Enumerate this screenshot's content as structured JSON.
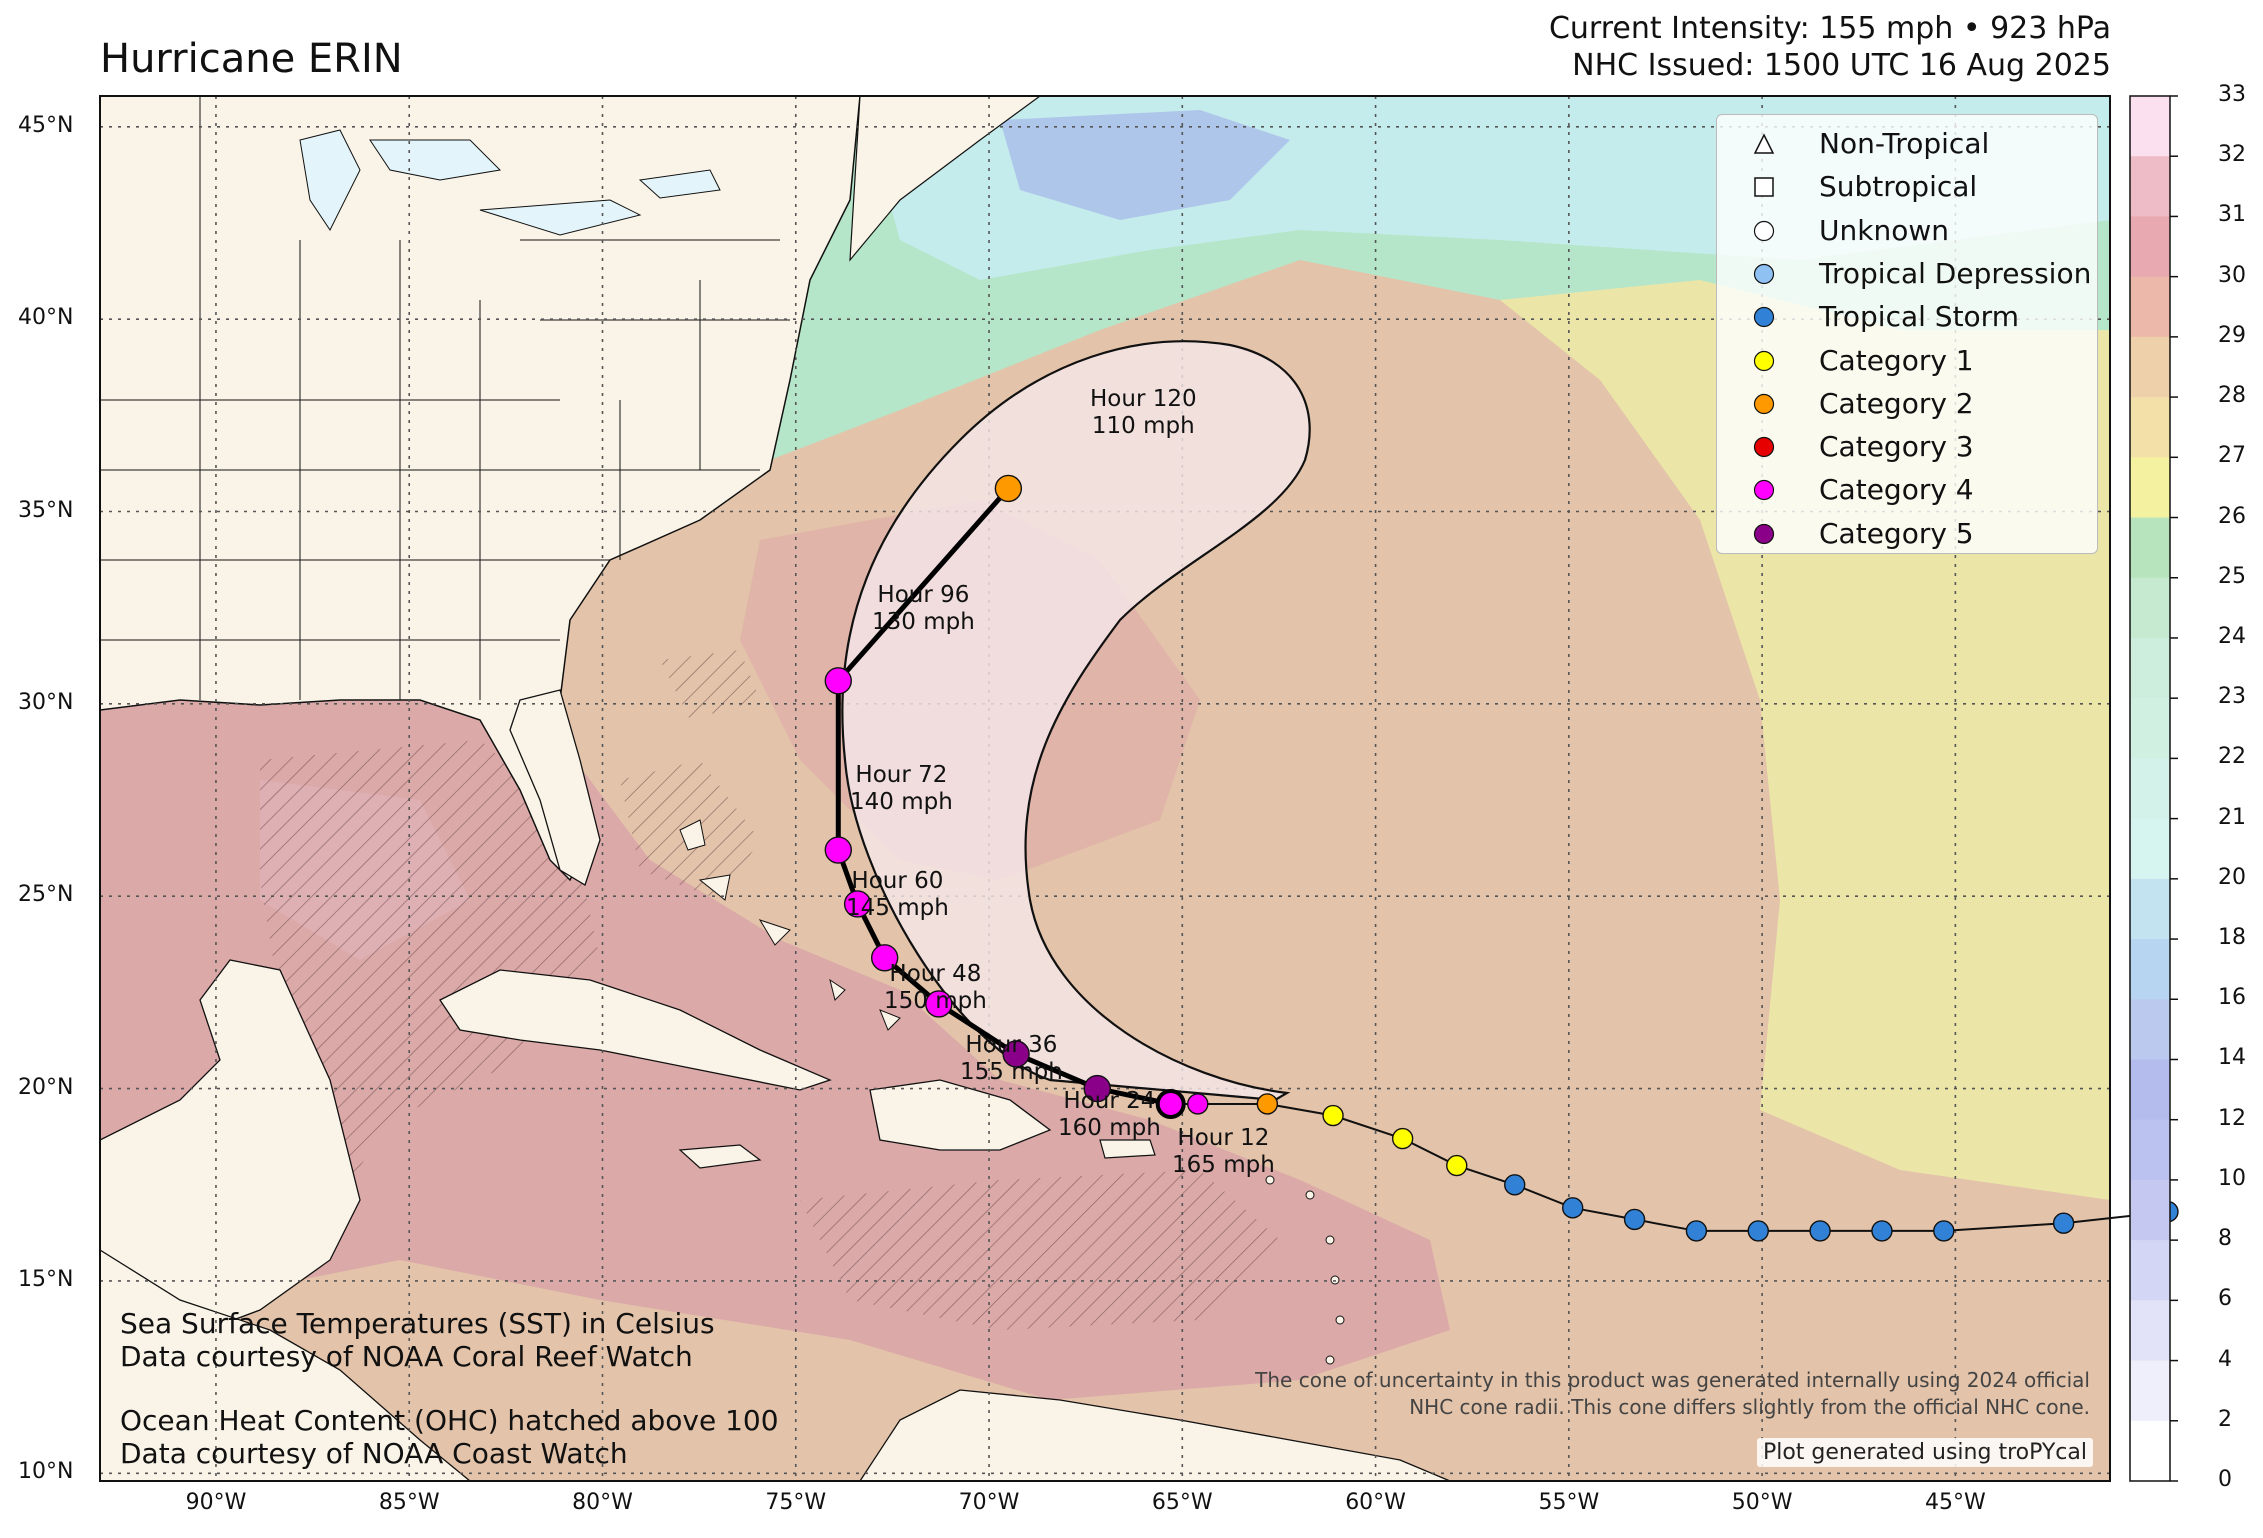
{
  "title": "Hurricane ERIN",
  "intensity": {
    "line1": "Current Intensity: 155 mph • 923 hPa",
    "line2": "NHC Issued: 1500 UTC 16 Aug 2025"
  },
  "legend": [
    {
      "label": "Non-Tropical",
      "shape": "triangle",
      "color": "#ffffff"
    },
    {
      "label": "Subtropical",
      "shape": "square",
      "color": "#ffffff"
    },
    {
      "label": "Unknown",
      "shape": "circle",
      "color": "#ffffff"
    },
    {
      "label": "Tropical Depression",
      "shape": "circle",
      "color": "#8fc2f2"
    },
    {
      "label": "Tropical Storm",
      "shape": "circle",
      "color": "#3182d6"
    },
    {
      "label": "Category 1",
      "shape": "circle",
      "color": "#ffff00"
    },
    {
      "label": "Category 2",
      "shape": "circle",
      "color": "#ff9900"
    },
    {
      "label": "Category 3",
      "shape": "circle",
      "color": "#e60000"
    },
    {
      "label": "Category 4",
      "shape": "circle",
      "color": "#ff00ff"
    },
    {
      "label": "Category 5",
      "shape": "circle",
      "color": "#8b0088"
    }
  ],
  "credits": {
    "sst1": "Sea Surface Temperatures (SST) in Celsius",
    "sst2": "Data courtesy of NOAA Coral Reef Watch",
    "ohc1": "Ocean Heat Content (OHC) hatched above 100",
    "ohc2": "Data courtesy of NOAA Coast Watch"
  },
  "cone_note": {
    "line1": "The cone of uncertainty in this product was generated internally using 2024 official",
    "line2": "NHC cone radii. This cone differs slightly from the official NHC cone."
  },
  "plot_generated": "Plot generated using troPYcal",
  "lat_ticks": [
    "45°N",
    "40°N",
    "35°N",
    "30°N",
    "25°N",
    "20°N",
    "15°N",
    "10°N"
  ],
  "lon_ticks": [
    "90°W",
    "85°W",
    "80°W",
    "75°W",
    "70°W",
    "65°W",
    "60°W",
    "55°W",
    "50°W",
    "45°W"
  ],
  "colorbar_ticks": [
    "33",
    "32",
    "31",
    "30",
    "29",
    "28",
    "27",
    "26",
    "25",
    "24",
    "23",
    "22",
    "21",
    "20",
    "18",
    "16",
    "14",
    "12",
    "10",
    "8",
    "6",
    "4",
    "2",
    "0"
  ],
  "forecast_labels": [
    {
      "hour": "Hour 120",
      "wind": "110 mph"
    },
    {
      "hour": "Hour 96",
      "wind": "130 mph"
    },
    {
      "hour": "Hour 72",
      "wind": "140 mph"
    },
    {
      "hour": "Hour 60",
      "wind": "145 mph"
    },
    {
      "hour": "Hour 48",
      "wind": "150 mph"
    },
    {
      "hour": "Hour 36",
      "wind": "155 mph"
    },
    {
      "hour": "Hour 24",
      "wind": "160 mph"
    },
    {
      "hour": "Hour 12",
      "wind": "165 mph"
    }
  ],
  "observed_track": [
    {
      "lon": -39.5,
      "lat": 16.8,
      "category": "Tropical Storm"
    },
    {
      "lon": -42.2,
      "lat": 16.5,
      "category": "Tropical Storm"
    },
    {
      "lon": -45.3,
      "lat": 16.3,
      "category": "Tropical Storm"
    },
    {
      "lon": -46.9,
      "lat": 16.3,
      "category": "Tropical Storm"
    },
    {
      "lon": -48.5,
      "lat": 16.3,
      "category": "Tropical Storm"
    },
    {
      "lon": -50.1,
      "lat": 16.3,
      "category": "Tropical Storm"
    },
    {
      "lon": -51.7,
      "lat": 16.3,
      "category": "Tropical Storm"
    },
    {
      "lon": -53.3,
      "lat": 16.6,
      "category": "Tropical Storm"
    },
    {
      "lon": -54.9,
      "lat": 16.9,
      "category": "Tropical Storm"
    },
    {
      "lon": -56.4,
      "lat": 17.5,
      "category": "Tropical Storm"
    },
    {
      "lon": -57.9,
      "lat": 18.0,
      "category": "Category 1"
    },
    {
      "lon": -59.3,
      "lat": 18.7,
      "category": "Category 1"
    },
    {
      "lon": -61.1,
      "lat": 19.3,
      "category": "Category 1"
    },
    {
      "lon": -62.8,
      "lat": 19.6,
      "category": "Category 2"
    },
    {
      "lon": -64.6,
      "lat": 19.6,
      "category": "Category 4"
    },
    {
      "lon": -65.3,
      "lat": 19.6,
      "category": "Category 4"
    }
  ],
  "forecast_track": [
    {
      "lon": -65.3,
      "lat": 19.6,
      "category": "Category 4"
    },
    {
      "lon": -67.2,
      "lat": 20.0,
      "category": "Category 5"
    },
    {
      "lon": -69.3,
      "lat": 20.9,
      "category": "Category 5"
    },
    {
      "lon": -71.3,
      "lat": 22.2,
      "category": "Category 4"
    },
    {
      "lon": -72.7,
      "lat": 23.4,
      "category": "Category 4"
    },
    {
      "lon": -73.4,
      "lat": 24.8,
      "category": "Category 4"
    },
    {
      "lon": -73.9,
      "lat": 26.2,
      "category": "Category 4"
    },
    {
      "lon": -73.9,
      "lat": 30.6,
      "category": "Category 4"
    },
    {
      "lon": -69.5,
      "lat": 35.6,
      "category": "Category 2"
    }
  ],
  "colors": {
    "land": "#faf4e8",
    "lakes": "#e3f5fa",
    "sst_warm": "#dfb5a8",
    "sst_hot": "#d99aa3",
    "sst_mid": "#e6cca6",
    "sst_cool": "#eef1a8",
    "sst_green": "#b2e4c7",
    "cone_fill": "#f5e6ea"
  }
}
